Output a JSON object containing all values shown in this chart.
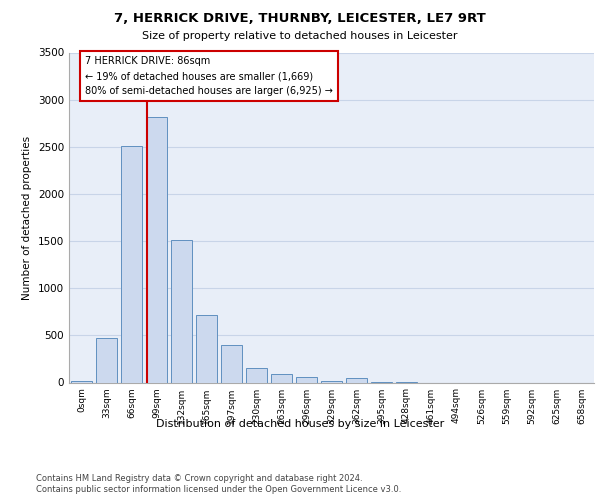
{
  "title_line1": "7, HERRICK DRIVE, THURNBY, LEICESTER, LE7 9RT",
  "title_line2": "Size of property relative to detached houses in Leicester",
  "xlabel": "Distribution of detached houses by size in Leicester",
  "ylabel": "Number of detached properties",
  "categories": [
    "0sqm",
    "33sqm",
    "66sqm",
    "99sqm",
    "132sqm",
    "165sqm",
    "197sqm",
    "230sqm",
    "263sqm",
    "296sqm",
    "329sqm",
    "362sqm",
    "395sqm",
    "428sqm",
    "461sqm",
    "494sqm",
    "526sqm",
    "559sqm",
    "592sqm",
    "625sqm",
    "658sqm"
  ],
  "bar_heights": [
    15,
    470,
    2510,
    2820,
    1510,
    720,
    395,
    155,
    90,
    55,
    15,
    50,
    5,
    5,
    0,
    0,
    0,
    0,
    0,
    0,
    0
  ],
  "bar_color": "#ccd9ee",
  "bar_edge_color": "#6090c0",
  "vline_color": "#cc0000",
  "annotation_text": "7 HERRICK DRIVE: 86sqm\n← 19% of detached houses are smaller (1,669)\n80% of semi-detached houses are larger (6,925) →",
  "annotation_box_color": "#ffffff",
  "annotation_box_edge_color": "#cc0000",
  "ylim": [
    0,
    3500
  ],
  "yticks": [
    0,
    500,
    1000,
    1500,
    2000,
    2500,
    3000,
    3500
  ],
  "grid_color": "#c8d4e8",
  "background_color": "#e8eef8",
  "footer_line1": "Contains HM Land Registry data © Crown copyright and database right 2024.",
  "footer_line2": "Contains public sector information licensed under the Open Government Licence v3.0."
}
